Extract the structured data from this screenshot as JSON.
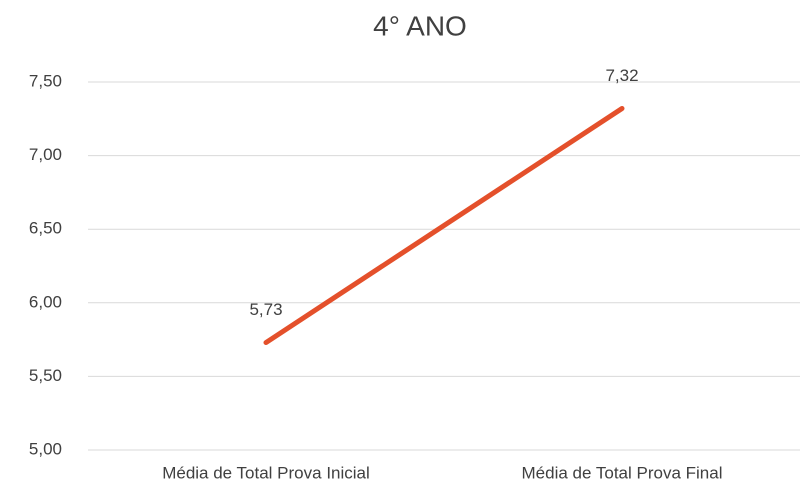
{
  "chart_data": {
    "type": "line",
    "title": "4° ANO",
    "categories": [
      "Média de Total Prova Inicial",
      "Média de Total Prova Final"
    ],
    "series": [
      {
        "name": "4° ANO",
        "color": "#e4502b",
        "values": [
          5.73,
          7.32
        ],
        "value_labels": [
          "5,73",
          "7,32"
        ]
      }
    ],
    "ylim": [
      5,
      7.5
    ],
    "yticks": [
      {
        "value": 5,
        "label": "5,00"
      },
      {
        "value": 5.5,
        "label": "5,50"
      },
      {
        "value": 6,
        "label": "6,00"
      },
      {
        "value": 6.5,
        "label": "6,50"
      },
      {
        "value": 7,
        "label": "7,00"
      },
      {
        "value": 7.5,
        "label": "7,50"
      }
    ],
    "grid": true
  }
}
